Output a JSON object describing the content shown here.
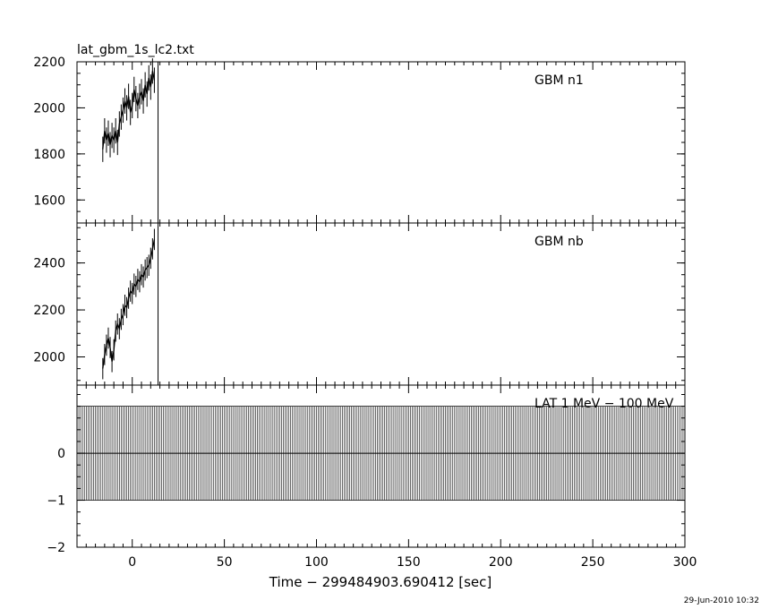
{
  "chart_data": {
    "type": "line",
    "title": "lat_gbm_1s_lc2.txt",
    "xlabel": "Time − 299484903.690412 [sec]",
    "xlim": [
      -30,
      300
    ],
    "x_ticks": [
      "0",
      "50",
      "100",
      "150",
      "200",
      "250",
      "300"
    ],
    "timestamp": "29-Jun-2010 10:32",
    "grid": false,
    "panels": [
      {
        "label": "GBM n1",
        "ylim": [
          1500,
          2200
        ],
        "y_ticks": [
          "1600",
          "1800",
          "2000",
          "2200"
        ],
        "series": [
          {
            "x": [
              -16,
              -15,
              -14,
              -13,
              -12,
              -11,
              -10,
              -9,
              -8,
              -7,
              -6,
              -5,
              -4,
              -3,
              -2,
              -1,
              0,
              1,
              2,
              3,
              4,
              5,
              6,
              7,
              8,
              9,
              10,
              11,
              12
            ],
            "y": [
              1820,
              1900,
              1860,
              1890,
              1840,
              1880,
              1860,
              1900,
              1850,
              1930,
              1960,
              1990,
              2030,
              2000,
              2050,
              1980,
              2010,
              2080,
              2040,
              2010,
              2050,
              2070,
              2030,
              2100,
              2060,
              2130,
              2090,
              2160,
              2120
            ],
            "err": 55
          }
        ]
      },
      {
        "label": "GBM nb",
        "ylim": [
          1880,
          2570
        ],
        "y_ticks": [
          "2000",
          "2200",
          "2400"
        ],
        "series": [
          {
            "x": [
              -16,
              -15,
              -14,
              -13,
              -12,
              -11,
              -10,
              -9,
              -8,
              -7,
              -6,
              -5,
              -4,
              -3,
              -2,
              -1,
              0,
              1,
              2,
              3,
              4,
              5,
              6,
              7,
              8,
              9,
              10,
              11,
              12
            ],
            "y": [
              1950,
              2010,
              2050,
              2080,
              2040,
              1980,
              2030,
              2110,
              2140,
              2120,
              2160,
              2180,
              2220,
              2210,
              2250,
              2280,
              2270,
              2310,
              2300,
              2330,
              2320,
              2350,
              2340,
              2370,
              2380,
              2390,
              2420,
              2460,
              2500
            ],
            "err": 45
          }
        ]
      },
      {
        "label": "LAT 1 MeV − 100 MeV",
        "ylim": [
          -2,
          1.45
        ],
        "y_ticks": [
          "−2",
          "−1",
          "0"
        ],
        "series": [
          {
            "x_start": -30,
            "x_end": 300,
            "x_step": 1,
            "value": 0,
            "err": 1
          }
        ]
      }
    ],
    "marker_x": 14
  }
}
